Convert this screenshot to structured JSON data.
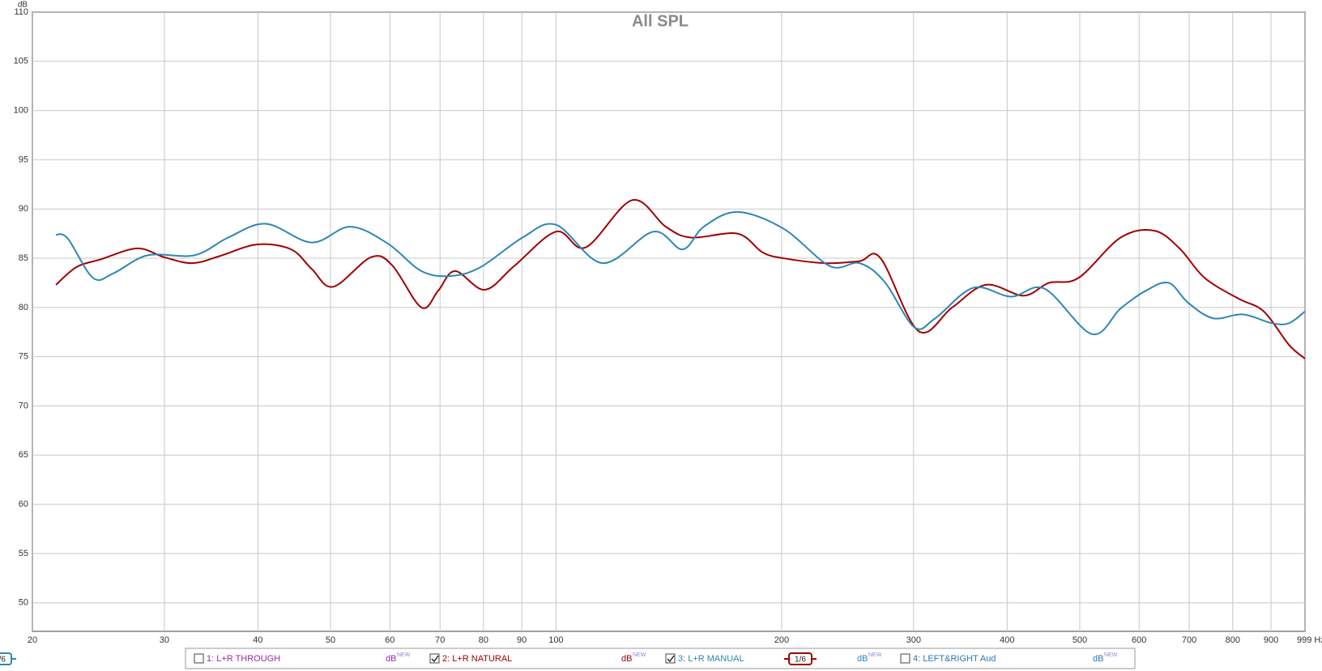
{
  "chart_data": {
    "type": "line",
    "title": "All SPL",
    "y_label": "dB",
    "log_x": true,
    "grid": true,
    "xlim": [
      20,
      999
    ],
    "ylim": [
      47.1,
      110
    ],
    "xticks": [
      20,
      30,
      40,
      50,
      60,
      70,
      80,
      90,
      100,
      200,
      300,
      400,
      500,
      600,
      700,
      800,
      900,
      {
        "value": 999,
        "label": "999 Hz"
      }
    ],
    "yticks": [
      50,
      55,
      60,
      65,
      70,
      75,
      80,
      85,
      90,
      95,
      100,
      105,
      110
    ],
    "legend_unit": "dB",
    "legend_badge": "NEW",
    "series": [
      {
        "name": "1: L+R THROUGH",
        "color": "#9b2aa3",
        "checked": false
      },
      {
        "name": "2: L+R NATURAL",
        "color": "#a00000",
        "checked": true,
        "smoothing": "1/6",
        "x": [
          21.5,
          22.9,
          24.7,
          27.6,
          30.0,
          32.7,
          35.5,
          39.9,
          44.3,
          47.2,
          50.4,
          56.6,
          60.4,
          66.1,
          69.6,
          73.3,
          80.3,
          87.9,
          100.0,
          109.5,
          126.3,
          140.1,
          151.4,
          174.6,
          188.6,
          201.2,
          229.0,
          254.0,
          271.1,
          304.6,
          337.8,
          374.6,
          420.8,
          454.8,
          498.0,
          566.8,
          628.6,
          679.3,
          734.0,
          814.2,
          880.2,
          951.1,
          999
        ],
        "values": [
          82.3,
          84.1,
          84.9,
          86.0,
          85.1,
          84.5,
          85.2,
          86.4,
          85.9,
          83.9,
          82.1,
          85.1,
          84.3,
          80.0,
          81.7,
          83.7,
          81.8,
          84.2,
          87.7,
          86.1,
          90.9,
          88.2,
          87.1,
          87.5,
          85.6,
          85.0,
          84.5,
          84.7,
          85.0,
          77.6,
          80.0,
          82.3,
          81.2,
          82.5,
          83.0,
          87.1,
          87.8,
          86.0,
          83.0,
          80.9,
          79.6,
          76.2,
          74.8
        ]
      },
      {
        "name": "3: L+R MANUAL",
        "color": "#2e86b4",
        "checked": true,
        "smoothing": "1/6",
        "x": [
          21.5,
          22.3,
          24.1,
          25.7,
          28.5,
          32.9,
          36.5,
          41.0,
          47.2,
          53.1,
          59.6,
          66.1,
          72.4,
          79.3,
          90.2,
          100.0,
          115.4,
          134.8,
          147.5,
          157.4,
          174.6,
          201.2,
          232.0,
          254.0,
          274.5,
          300.6,
          320.7,
          360.4,
          404.9,
          448.9,
          519.0,
          566.8,
          612.5,
          657.0,
          697.0,
          753.5,
          824.9,
          902.9,
          951.1,
          999
        ],
        "values": [
          87.4,
          87.0,
          83.0,
          83.5,
          85.3,
          85.3,
          87.1,
          88.5,
          86.6,
          88.2,
          86.5,
          83.7,
          83.2,
          84.1,
          87.1,
          88.4,
          84.5,
          87.7,
          85.9,
          88.2,
          89.7,
          88.0,
          84.2,
          84.5,
          82.6,
          78.0,
          78.9,
          82.0,
          81.1,
          81.9,
          77.3,
          79.9,
          81.7,
          82.5,
          80.5,
          78.9,
          79.3,
          78.4,
          78.4,
          79.6
        ]
      },
      {
        "name": "4: LEFT&RIGHT Aud",
        "color": "#2f77b0",
        "checked": false
      }
    ]
  }
}
